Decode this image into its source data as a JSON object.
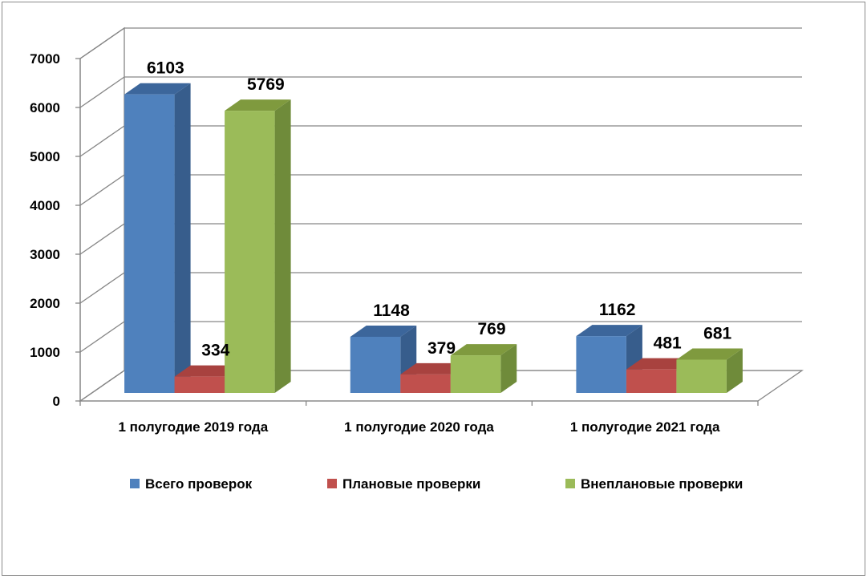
{
  "chart_data": {
    "type": "bar",
    "categories": [
      "1 полугодие 2019 года",
      "1 полугодие 2020 года",
      "1 полугодие 2021 года"
    ],
    "series": [
      {
        "name": "Всего проверок",
        "values": [
          6103,
          1148,
          1162
        ],
        "color": "#4f81bd",
        "side_color": "#375d8c",
        "top_color": "#3c669b"
      },
      {
        "name": "Плановые проверки",
        "values": [
          334,
          379,
          481
        ],
        "color": "#c0504d",
        "side_color": "#8e3937",
        "top_color": "#a8423f"
      },
      {
        "name": "Внеплановые проверки",
        "values": [
          5769,
          769,
          681
        ],
        "color": "#9bbb59",
        "side_color": "#6f8b3a",
        "top_color": "#7f9a3e"
      }
    ],
    "yticks": [
      "0",
      "1000",
      "2000",
      "3000",
      "4000",
      "5000",
      "6000",
      "7000"
    ],
    "ylim": [
      0,
      7000
    ],
    "grid": true,
    "legend_position": "bottom",
    "data_labels": true
  }
}
